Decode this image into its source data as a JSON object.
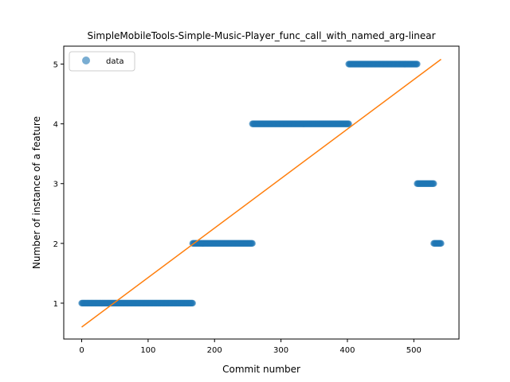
{
  "chart_data": {
    "type": "scatter",
    "title": "SimpleMobileTools-Simple-Music-Player_func_call_with_named_arg-linear",
    "xlabel": "Commit number",
    "ylabel": "Number of instance of a feature",
    "xlim": [
      -27,
      568
    ],
    "ylim": [
      0.4,
      5.3
    ],
    "xticks": [
      0,
      100,
      200,
      300,
      400,
      500
    ],
    "yticks": [
      1,
      2,
      3,
      4,
      5
    ],
    "legend": {
      "entries": [
        "data"
      ],
      "placement": "top-left"
    },
    "grid": false,
    "colors": {
      "data": "#1f77b4",
      "fit": "#ff7f0e"
    },
    "series": [
      {
        "name": "data",
        "kind": "points",
        "segments": [
          {
            "x_start": 0,
            "x_end": 167,
            "y": 1
          },
          {
            "x_start": 167,
            "x_end": 257,
            "y": 2
          },
          {
            "x_start": 257,
            "x_end": 402,
            "y": 4
          },
          {
            "x_start": 402,
            "x_end": 505,
            "y": 5
          },
          {
            "x_start": 505,
            "x_end": 530,
            "y": 3
          },
          {
            "x_start": 530,
            "x_end": 541,
            "y": 2
          }
        ]
      },
      {
        "kind": "line",
        "x": [
          0,
          541
        ],
        "y": [
          0.6,
          5.08
        ]
      }
    ]
  }
}
